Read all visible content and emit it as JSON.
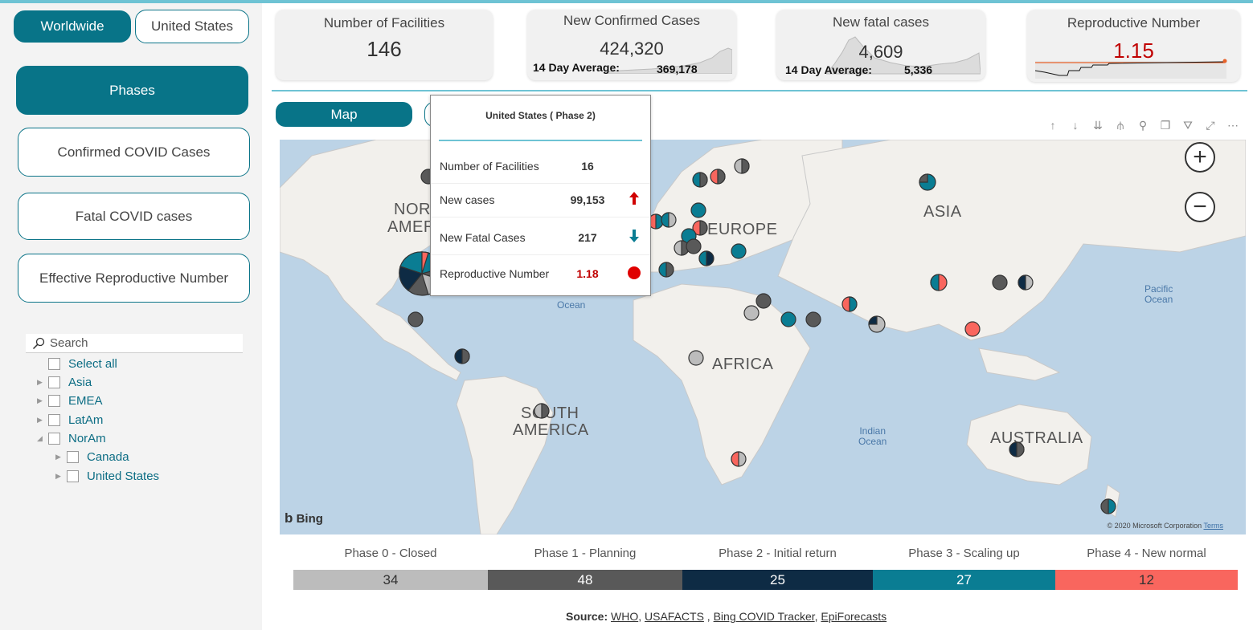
{
  "left": {
    "region_tabs": [
      "Worldwide",
      "United States"
    ],
    "nav": [
      "Phases",
      "Confirmed COVID Cases",
      "Fatal COVID cases",
      "Effective Reproductive Number"
    ],
    "search_placeholder": "Search",
    "slicer": {
      "select_all": "Select all",
      "items": [
        "Asia",
        "EMEA",
        "LatAm",
        "NorAm"
      ],
      "children": [
        "Canada",
        "United States"
      ]
    }
  },
  "kpis": {
    "facilities": {
      "title": "Number of Facilities",
      "value": "146"
    },
    "confirmed": {
      "title": "New Confirmed Cases",
      "value": "424,320",
      "avg_label": "14 Day Average:",
      "avg_value": "369,178"
    },
    "fatal": {
      "title": "New fatal cases",
      "value": "4,609",
      "avg_label": "14 Day Average:",
      "avg_value": "5,336"
    },
    "repro": {
      "title": "Reproductive Number",
      "value": "1.15",
      "color": "#c00000"
    }
  },
  "map": {
    "tab_label": "Map",
    "labels": {
      "north_america_1": "NOR",
      "north_america_2": "AMER",
      "europe": "EUROPE",
      "asia": "ASIA",
      "africa": "AFRICA",
      "south_america_1": "SOUTH",
      "south_america_2": "AMERICA",
      "australia": "AUSTRALIA"
    },
    "oceans": {
      "atlantic": "Ocean",
      "pacific": "Pacific\nOcean",
      "indian": "Indian\nOcean"
    },
    "bing": "Bing",
    "copyright": "© 2020 Microsoft Corporation",
    "terms": "Terms"
  },
  "tooltip": {
    "title": "United States ( Phase 2)",
    "rows": [
      {
        "label": "Number of Facilities",
        "value": "16"
      },
      {
        "label": "New cases",
        "value": "99,153",
        "trend": "up"
      },
      {
        "label": "New Fatal Cases",
        "value": "217",
        "trend": "down"
      },
      {
        "label": "Reproductive Number",
        "value": "1.18",
        "status": "red-dot"
      }
    ]
  },
  "phases": [
    {
      "label": "Phase 0 - Closed",
      "count": "34",
      "color": "#bcbcbc"
    },
    {
      "label": "Phase 1 - Planning",
      "count": "48",
      "color": "#595959"
    },
    {
      "label": "Phase 2 - Initial return",
      "count": "25",
      "color": "#0e2b44"
    },
    {
      "label": "Phase 3 - Scaling up",
      "count": "27",
      "color": "#0a7d93"
    },
    {
      "label": "Phase 4 - New normal",
      "count": "12",
      "color": "#f9665e"
    }
  ],
  "source": {
    "prefix": "Source:",
    "links": [
      "WHO",
      "USAFACTS",
      "Bing COVID Tracker",
      "EpiForecasts"
    ]
  }
}
